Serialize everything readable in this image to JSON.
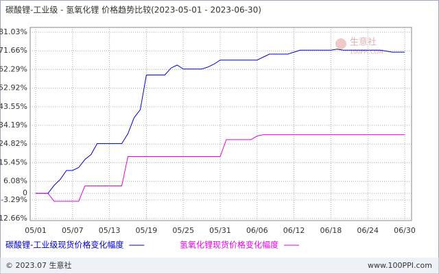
{
  "chart_data": {
    "type": "line",
    "title": "碳酸锂-工业级 - 氢氧化锂 价格趋势比较(2023-05-01 - 2023-06-30)",
    "categories": [
      "05/01",
      null,
      null,
      null,
      null,
      null,
      "05/07",
      null,
      null,
      null,
      null,
      null,
      "05/13",
      null,
      null,
      null,
      null,
      null,
      "05/19",
      null,
      null,
      null,
      null,
      null,
      "05/25",
      null,
      null,
      null,
      null,
      null,
      "05/31",
      null,
      null,
      null,
      null,
      null,
      "06/06",
      null,
      null,
      null,
      null,
      null,
      "06/12",
      null,
      null,
      null,
      null,
      null,
      "06/18",
      null,
      null,
      null,
      null,
      null,
      "06/24",
      null,
      null,
      null,
      null,
      null,
      "06/30"
    ],
    "series": [
      {
        "name": "碳酸锂-工业级现货价格变化幅度",
        "color": "#0000cc",
        "values": [
          0,
          0,
          0,
          4,
          7,
          11.5,
          11.5,
          13,
          17,
          19.5,
          25,
          25,
          25,
          25,
          25,
          30,
          38,
          42,
          59.5,
          59.5,
          59.5,
          59.5,
          63,
          64.5,
          62.5,
          62.5,
          62.5,
          62.5,
          63.5,
          65,
          67,
          67,
          67,
          67,
          67,
          67,
          67,
          68.5,
          70,
          70,
          70,
          70,
          71,
          72,
          72,
          72,
          72,
          72,
          72,
          72.5,
          72,
          72,
          72,
          72,
          72,
          72,
          72,
          71.5,
          71,
          71,
          71
        ]
      },
      {
        "name": "氢氧化锂现货价格变化幅度",
        "color": "#e600e6",
        "values": [
          0,
          0,
          0,
          -4,
          -4,
          -4,
          -4,
          -4,
          3.7,
          3.7,
          3.7,
          3.7,
          3.7,
          3.7,
          3.7,
          18.5,
          18.5,
          18.5,
          18.5,
          18.5,
          18.5,
          18.5,
          18.5,
          18.5,
          18.5,
          18.5,
          18.5,
          18.5,
          18.5,
          18.5,
          18.5,
          27,
          27,
          27,
          27,
          27,
          28.8,
          29.5,
          29.5,
          29.5,
          29.5,
          29.5,
          29.5,
          29.5,
          29.5,
          29.5,
          29.5,
          29.5,
          29.5,
          29.5,
          29.5,
          29.5,
          29.5,
          29.5,
          29.5,
          29.5,
          29.5,
          29.5,
          29.5,
          29.5,
          29.5
        ]
      }
    ],
    "ylim": [
      -12.66,
      81.03
    ],
    "yticks": [
      {
        "value": 81.03,
        "label": "81.03%"
      },
      {
        "value": 71.66,
        "label": "71.66%"
      },
      {
        "value": 62.29,
        "label": "62.29%"
      },
      {
        "value": 52.92,
        "label": "52.92%"
      },
      {
        "value": 43.55,
        "label": "43.55%"
      },
      {
        "value": 34.19,
        "label": "34.19%"
      },
      {
        "value": 24.82,
        "label": "24.82%"
      },
      {
        "value": 15.45,
        "label": "15.45%"
      },
      {
        "value": 6.08,
        "label": "6.08%"
      },
      0,
      {
        "value": -3.29,
        "label": "-3.29%"
      },
      {
        "value": -12.66,
        "label": "-12.66%"
      }
    ],
    "grid": true,
    "watermark": {
      "name": "生意社",
      "site": "100PPI.COM"
    },
    "footer": {
      "left": "© 2023.07 生意社",
      "right": "www.100PPI.com"
    }
  }
}
